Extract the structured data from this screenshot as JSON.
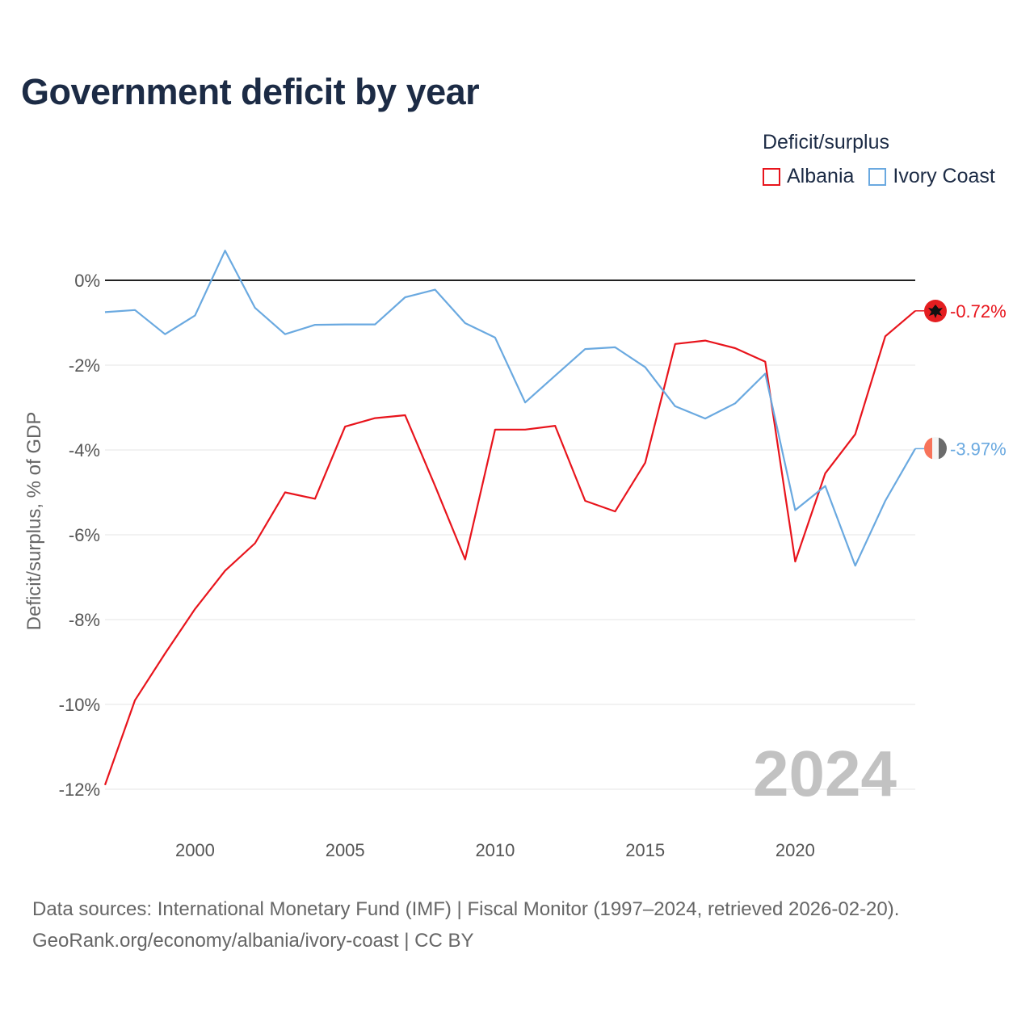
{
  "title": "Government deficit by year",
  "legend": {
    "title": "Deficit/surplus",
    "items": [
      {
        "label": "Albania",
        "color": "#e8141c"
      },
      {
        "label": "Ivory Coast",
        "color": "#6aa9e0"
      }
    ]
  },
  "footer": {
    "line1": "Data sources: International Monetary Fund (IMF) | Fiscal Monitor (1997–2024, retrieved 2026-02-20).",
    "line2": "GeoRank.org/economy/albania/ivory-coast | CC BY"
  },
  "chart_data": {
    "type": "line",
    "title": "Government deficit by year",
    "xlabel": "",
    "ylabel": "Deficit/surplus, % of GDP",
    "xlim": [
      1997,
      2024
    ],
    "ylim": [
      -12,
      0.7
    ],
    "yticks": [
      0,
      -2,
      -4,
      -6,
      -8,
      -10,
      -12
    ],
    "ytick_labels": [
      "0%",
      "-2%",
      "-4%",
      "-6%",
      "-8%",
      "-10%",
      "-12%"
    ],
    "xticks": [
      2000,
      2005,
      2010,
      2015,
      2020
    ],
    "xtick_labels": [
      "2000",
      "2005",
      "2010",
      "2015",
      "2020"
    ],
    "grid": true,
    "highlighted_year": "2024",
    "x": [
      1997,
      1998,
      1999,
      2000,
      2001,
      2002,
      2003,
      2004,
      2005,
      2006,
      2007,
      2008,
      2009,
      2010,
      2011,
      2012,
      2013,
      2014,
      2015,
      2016,
      2017,
      2018,
      2019,
      2020,
      2021,
      2022,
      2023,
      2024
    ],
    "series": [
      {
        "name": "Albania",
        "color": "#e8141c",
        "end_label": "-0.72%",
        "values": [
          -11.9,
          -9.9,
          -8.8,
          -7.75,
          -6.85,
          -6.2,
          -5.0,
          -5.15,
          -3.45,
          -3.25,
          -3.18,
          -4.85,
          -6.58,
          -3.52,
          -3.52,
          -3.43,
          -5.2,
          -5.45,
          -4.3,
          -1.5,
          -1.42,
          -1.6,
          -1.92,
          -6.63,
          -4.55,
          -3.63,
          -1.32,
          -0.72
        ]
      },
      {
        "name": "Ivory Coast",
        "color": "#6aa9e0",
        "end_label": "-3.97%",
        "values": [
          -0.75,
          -0.7,
          -1.27,
          -0.83,
          0.7,
          -0.65,
          -1.27,
          -1.05,
          -1.04,
          -1.04,
          -0.4,
          -0.22,
          -1.01,
          -1.35,
          -2.88,
          -2.25,
          -1.62,
          -1.58,
          -2.05,
          -2.97,
          -3.26,
          -2.9,
          -2.2,
          -5.42,
          -4.85,
          -6.73,
          -5.2,
          -3.97
        ]
      }
    ]
  }
}
